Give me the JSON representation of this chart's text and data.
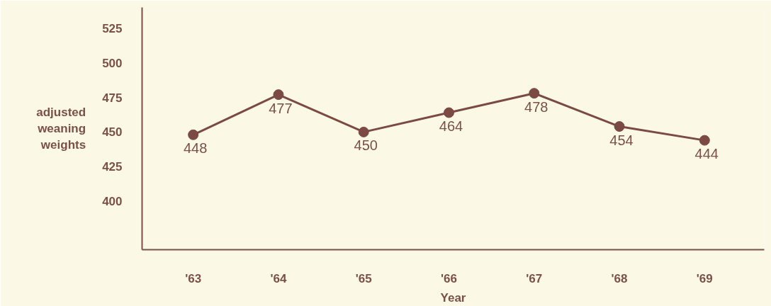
{
  "chart_data": {
    "type": "line",
    "xlabel": "Year",
    "ylabel": "adjusted weaning weights",
    "categories": [
      "'63",
      "'64",
      "'65",
      "'66",
      "'67",
      "'68",
      "'69"
    ],
    "series": [
      {
        "color": "#7b4a42",
        "values": [
          448,
          477,
          450,
          464,
          478,
          454,
          444
        ]
      }
    ],
    "ylim": [
      365,
      540
    ],
    "yticks": [
      400,
      425,
      450,
      475,
      500,
      525
    ],
    "data_labels": true,
    "marker": "circle"
  }
}
